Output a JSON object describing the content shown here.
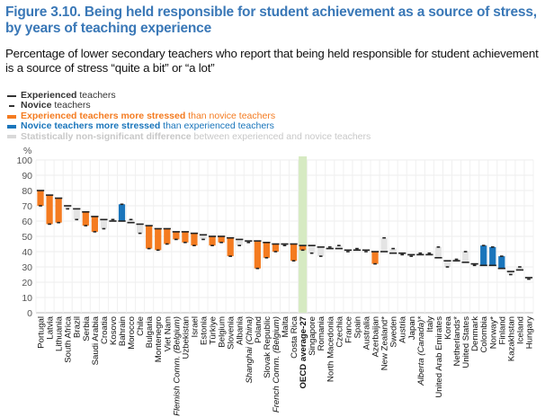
{
  "header": {
    "title": "Figure 3.10. Being held responsible for student achievement as a source of stress, by years of teaching experience",
    "subtitle": "Percentage of lower secondary teachers who report that being held responsible for student achievement is a source of stress “quite a bit” or “a lot”"
  },
  "legend": [
    {
      "key": "experienced",
      "bold": "Experienced",
      "rest": " teachers",
      "color": "#333333"
    },
    {
      "key": "novice",
      "bold": "Novice",
      "rest": " teachers",
      "color": "#333333"
    },
    {
      "key": "exp_more",
      "bold": "Experienced teachers more stressed",
      "rest": " than novice teachers",
      "color": "#f47b20"
    },
    {
      "key": "nov_more",
      "bold": "Novice teachers more stressed",
      "rest": " than experienced teachers",
      "color": "#1a75bb"
    },
    {
      "key": "ns",
      "bold": "Statistically non-significant difference",
      "rest": " between experienced and novice teachers",
      "color": "#d9d9d9"
    }
  ],
  "colors": {
    "exp_more": "#f47b20",
    "nov_more": "#1a75bb",
    "ns": "#e4e4e4",
    "oecd_band": "#d6eac2",
    "oecd_label": "#7dc242",
    "marker": "#222222"
  },
  "chart_data": {
    "type": "bar",
    "title": "Being held responsible for student achievement as a source of stress, by years of teaching experience",
    "xlabel": "",
    "ylabel": "%",
    "ylim": [
      0,
      100
    ],
    "yticks": [
      0,
      10,
      20,
      30,
      40,
      50,
      60,
      70,
      80,
      90,
      100
    ],
    "grid": true,
    "legend_position": "top-left",
    "categories": [
      "Portugal",
      "Latvia",
      "Lithuania",
      "South Africa",
      "Brazil",
      "Serbia",
      "Saudi Arabia",
      "Croatia",
      "Kosovo",
      "Bahrain",
      "Morocco",
      "Chile",
      "Bulgaria",
      "Montenegro",
      "Viet Nam",
      "Flemish Comm. (Belgium)",
      "Uzbekistan",
      "Israel",
      "Estonia",
      "Türkiye",
      "Belgium",
      "Slovenia",
      "Albania",
      "Shanghai (China)",
      "Poland",
      "Slovak Republic",
      "French Comm. (Belgium)",
      "Malta",
      "Costa Rica",
      "OECD average-27",
      "Singapore",
      "Romania",
      "North Macedonia",
      "Czechia",
      "France",
      "Spain",
      "Australia",
      "Azerbaijan",
      "New Zealand*",
      "Sweden",
      "Austria",
      "Japan",
      "Alberta (Canada)*",
      "Italy",
      "United Arab Emirates",
      "Korea",
      "Netherlands*",
      "United States",
      "Denmark",
      "Colombia",
      "Norway*",
      "Finland",
      "Kazakhstan",
      "Iceland",
      "Hungary"
    ],
    "italic_categories": [
      "Flemish Comm. (Belgium)",
      "Shanghai (China)",
      "French Comm. (Belgium)",
      "Alberta (Canada)*"
    ],
    "highlight_category": "OECD average-27",
    "series": [
      {
        "name": "Experienced teachers",
        "values": [
          80,
          77,
          75,
          70,
          68,
          66,
          63,
          61,
          60,
          60,
          59,
          58,
          57,
          55,
          55,
          53,
          53,
          52,
          51,
          50,
          50,
          49,
          48,
          47,
          47,
          46,
          45,
          45,
          45,
          44,
          44,
          43,
          42,
          42,
          41,
          41,
          41,
          40,
          40,
          39,
          39,
          38,
          38,
          38,
          36,
          34,
          34,
          33,
          32,
          31,
          31,
          29,
          27,
          28,
          23
        ]
      },
      {
        "name": "Novice teachers",
        "values": [
          70,
          58,
          59,
          68,
          61,
          57,
          53,
          55,
          61,
          71,
          61,
          52,
          42,
          41,
          45,
          48,
          46,
          44,
          48,
          44,
          46,
          37,
          44,
          46,
          29,
          36,
          40,
          44,
          34,
          41,
          39,
          37,
          43,
          44,
          40,
          42,
          40,
          32,
          49,
          42,
          38,
          37,
          39,
          39,
          43,
          30,
          35,
          40,
          31,
          44,
          43,
          37,
          25,
          30,
          22
        ]
      }
    ],
    "significance": [
      "exp",
      "exp",
      "exp",
      "ns",
      "ns",
      "exp",
      "exp",
      "ns",
      "ns",
      "nov",
      "ns",
      "ns",
      "exp",
      "exp",
      "exp",
      "exp",
      "exp",
      "exp",
      "ns",
      "exp",
      "exp",
      "exp",
      "ns",
      "ns",
      "exp",
      "exp",
      "exp",
      "ns",
      "exp",
      "exp",
      "ns",
      "ns",
      "ns",
      "ns",
      "ns",
      "ns",
      "ns",
      "exp",
      "ns",
      "ns",
      "ns",
      "ns",
      "ns",
      "ns",
      "ns",
      "ns",
      "ns",
      "ns",
      "ns",
      "nov",
      "nov",
      "nov",
      "ns",
      "ns",
      "ns"
    ]
  }
}
